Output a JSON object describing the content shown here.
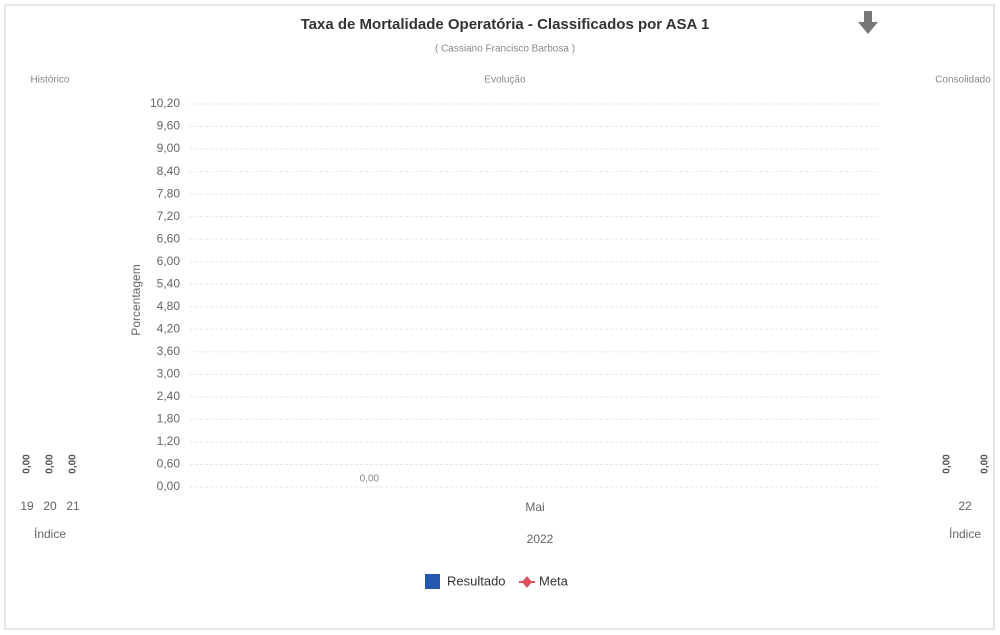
{
  "chart_data": [
    {
      "type": "bar",
      "title": "Taxa de Mortalidade Operatória - Classificados por ASA 1",
      "subtitle": "( Cassiano Francisco Barbosa )",
      "panel_title": "Evolução",
      "ylabel": "Porcentagem",
      "xlabel": "2022",
      "categories": [
        "Mai"
      ],
      "series": [
        {
          "name": "Resultado",
          "color": "#2457b0",
          "values": [
            0
          ],
          "value_labels": [
            "0,00"
          ]
        },
        {
          "name": "Meta",
          "color": "#e0505a",
          "values": [
            null
          ]
        }
      ],
      "ylim": [
        0,
        10.2
      ],
      "yticks": [
        {
          "value": 0,
          "label": "0,00"
        },
        {
          "value": 0.6,
          "label": "0,60"
        },
        {
          "value": 1.2,
          "label": "1,20"
        },
        {
          "value": 1.8,
          "label": "1,80"
        },
        {
          "value": 2.4,
          "label": "2,40"
        },
        {
          "value": 3,
          "label": "3,00"
        },
        {
          "value": 3.6,
          "label": "3,60"
        },
        {
          "value": 4.2,
          "label": "4,20"
        },
        {
          "value": 4.8,
          "label": "4,80"
        },
        {
          "value": 5.4,
          "label": "5,40"
        },
        {
          "value": 6,
          "label": "6,00"
        },
        {
          "value": 6.6,
          "label": "6,60"
        },
        {
          "value": 7.2,
          "label": "7,20"
        },
        {
          "value": 7.8,
          "label": "7,80"
        },
        {
          "value": 8.4,
          "label": "8,40"
        },
        {
          "value": 9,
          "label": "9,00"
        },
        {
          "value": 9.6,
          "label": "9,60"
        },
        {
          "value": 10.2,
          "label": "10,20"
        }
      ],
      "grid": true
    },
    {
      "type": "bar",
      "panel_title": "Histórico",
      "xlabel": "Índice",
      "categories": [
        "19",
        "20",
        "21"
      ],
      "series": [
        {
          "name": "Resultado",
          "color": "#2457b0",
          "values": [
            0,
            0,
            0
          ],
          "value_labels": [
            "0,00",
            "0,00",
            "0,00"
          ]
        }
      ]
    },
    {
      "type": "bar",
      "panel_title": "Consolidado",
      "xlabel": "Índice",
      "categories": [
        "22"
      ],
      "series": [
        {
          "name": "Resultado",
          "color": "#2457b0",
          "values": [
            0
          ],
          "value_labels": [
            "0,00"
          ]
        },
        {
          "name": "Meta",
          "color": "#e0505a",
          "values": [
            0
          ],
          "value_labels": [
            "0,00"
          ]
        }
      ]
    }
  ]
}
